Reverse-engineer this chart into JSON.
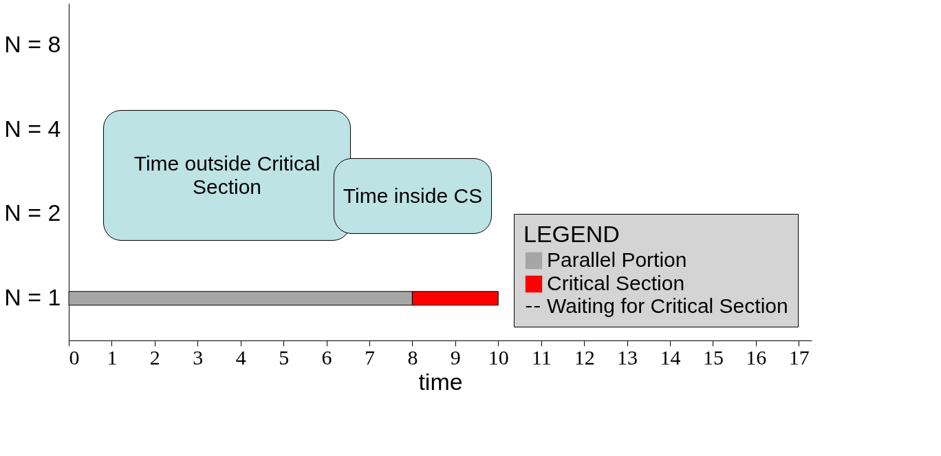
{
  "chart_data": {
    "type": "bar",
    "orientation": "horizontal",
    "stacked": true,
    "categories": [
      "N = 8",
      "N = 4",
      "N = 2",
      "N = 1"
    ],
    "series": [
      {
        "name": "Parallel Portion",
        "color": "#a6a6a6",
        "values": [
          null,
          null,
          null,
          8
        ]
      },
      {
        "name": "Critical Section",
        "color": "#ff0000",
        "values": [
          null,
          null,
          null,
          2
        ]
      },
      {
        "name": "Waiting for Critical Section",
        "type": "line",
        "line_style": "dashed",
        "color": "#000000",
        "values": [
          null,
          null,
          null,
          null
        ]
      }
    ],
    "xlabel": "time",
    "xlim": [
      0,
      17.3
    ],
    "xticks": [
      0,
      1,
      2,
      3,
      4,
      5,
      6,
      7,
      8,
      9,
      10,
      11,
      12,
      13,
      14,
      15,
      16,
      17
    ],
    "legend_title": "LEGEND",
    "legend": "bottom right",
    "grid": false,
    "annotations": [
      "Time outside Critical Section",
      "Time inside CS"
    ]
  }
}
